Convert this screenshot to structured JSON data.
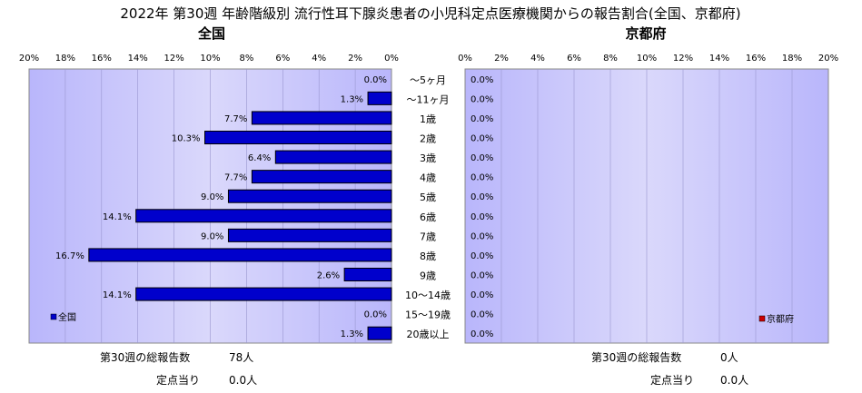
{
  "title": "2022年 第30週 年齢階級別 流行性耳下腺炎患者の小児科定点医療機関からの報告割合(全国、京都府)",
  "chart_data": [
    {
      "type": "bar",
      "orientation": "horizontal",
      "subtitle": "全国",
      "legend": "全国",
      "legend_position": "bottom-left",
      "color": "#0000CC",
      "xlim": [
        0,
        20
      ],
      "x_reversed": true,
      "ticks": [
        "0%",
        "2%",
        "4%",
        "6%",
        "8%",
        "10%",
        "12%",
        "14%",
        "16%",
        "18%",
        "20%"
      ],
      "categories": [
        "～5ヶ月",
        "～11ヶ月",
        "1歳",
        "2歳",
        "3歳",
        "4歳",
        "5歳",
        "6歳",
        "7歳",
        "8歳",
        "9歳",
        "10～14歳",
        "15～19歳",
        "20歳以上"
      ],
      "values": [
        0.0,
        1.3,
        7.7,
        10.3,
        6.4,
        7.7,
        9.0,
        14.1,
        9.0,
        16.7,
        2.6,
        14.1,
        0.0,
        1.3
      ],
      "value_labels": [
        "0.0%",
        "1.3%",
        "7.7%",
        "10.3%",
        "6.4%",
        "7.7%",
        "9.0%",
        "14.1%",
        "9.0%",
        "16.7%",
        "2.6%",
        "14.1%",
        "0.0%",
        "1.3%"
      ]
    },
    {
      "type": "bar",
      "orientation": "horizontal",
      "subtitle": "京都府",
      "legend": "京都府",
      "legend_position": "bottom-right",
      "color": "#CC0000",
      "xlim": [
        0,
        20
      ],
      "x_reversed": false,
      "ticks": [
        "0%",
        "2%",
        "4%",
        "6%",
        "8%",
        "10%",
        "12%",
        "14%",
        "16%",
        "18%",
        "20%"
      ],
      "categories": [
        "～5ヶ月",
        "～11ヶ月",
        "1歳",
        "2歳",
        "3歳",
        "4歳",
        "5歳",
        "6歳",
        "7歳",
        "8歳",
        "9歳",
        "10～14歳",
        "15～19歳",
        "20歳以上"
      ],
      "values": [
        0.0,
        0.0,
        0.0,
        0.0,
        0.0,
        0.0,
        0.0,
        0.0,
        0.0,
        0.0,
        0.0,
        0.0,
        0.0,
        0.0
      ],
      "value_labels": [
        "0.0%",
        "0.0%",
        "0.0%",
        "0.0%",
        "0.0%",
        "0.0%",
        "0.0%",
        "0.0%",
        "0.0%",
        "0.0%",
        "0.0%",
        "0.0%",
        "0.0%",
        "0.0%"
      ]
    }
  ],
  "footer": {
    "national": {
      "total_label": "第30週の総報告数",
      "total_value": "78人",
      "per_label": "定点当り",
      "per_value": "0.0人"
    },
    "kyoto": {
      "total_label": "第30週の総報告数",
      "total_value": "0人",
      "per_label": "定点当り",
      "per_value": "0.0人"
    }
  }
}
